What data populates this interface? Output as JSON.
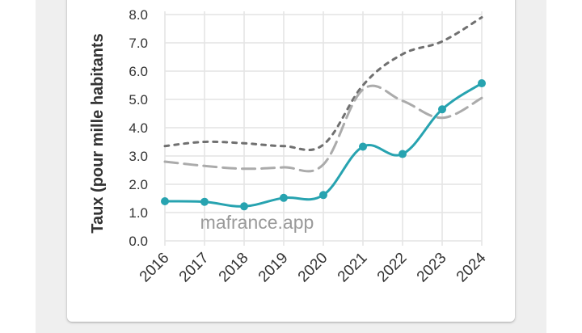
{
  "chart_data": {
    "type": "line",
    "ylabel": "Taux (pour mille habitants",
    "watermark": "mafrance.app",
    "x": [
      "2016",
      "2017",
      "2018",
      "2019",
      "2020",
      "2021",
      "2022",
      "2023",
      "2024"
    ],
    "ylim": [
      0,
      8
    ],
    "yticks": [
      "0.0",
      "1.0",
      "2.0",
      "3.0",
      "4.0",
      "5.0",
      "6.0",
      "7.0",
      "8.0"
    ],
    "grid": true,
    "series": [
      {
        "style": "dotted",
        "color": "#707070",
        "values": [
          3.35,
          3.5,
          3.45,
          3.35,
          3.4,
          5.5,
          6.6,
          7.05,
          7.9
        ]
      },
      {
        "style": "dashed",
        "color": "#ababab",
        "values": [
          2.8,
          2.65,
          2.55,
          2.6,
          2.7,
          5.35,
          4.95,
          4.35,
          5.05
        ]
      },
      {
        "style": "solid",
        "color": "#27a3b0",
        "markers": true,
        "values": [
          1.4,
          1.38,
          1.22,
          1.52,
          1.62,
          3.33,
          3.07,
          4.65,
          5.57
        ]
      }
    ]
  }
}
